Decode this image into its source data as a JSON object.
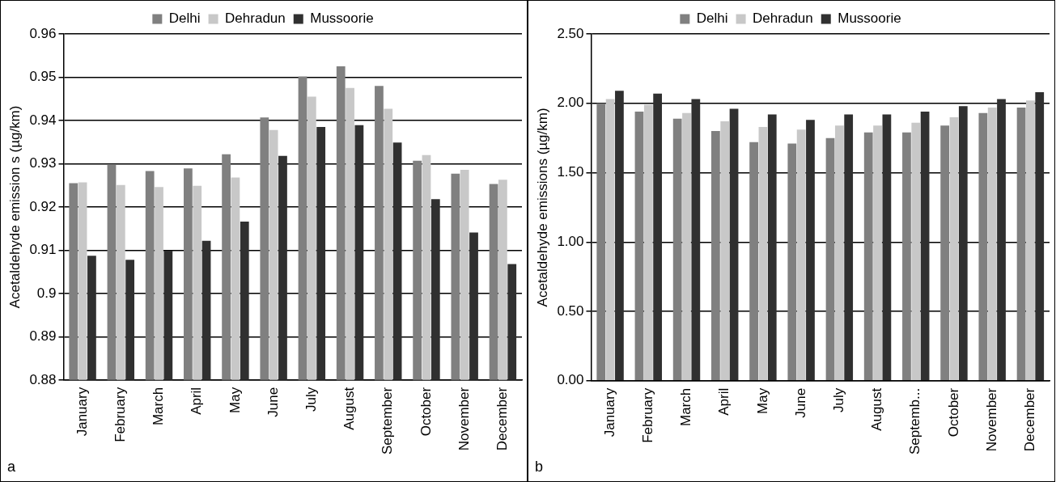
{
  "chart_data": [
    {
      "type": "bar",
      "categories": [
        "January",
        "February",
        "March",
        "April",
        "May",
        "June",
        "July",
        "August",
        "September",
        "October",
        "November",
        "December"
      ],
      "series": [
        {
          "name": "Delhi",
          "color": "#808080",
          "values": [
            0.9255,
            0.9297,
            0.9283,
            0.9289,
            0.9322,
            0.9407,
            0.9502,
            0.9525,
            0.948,
            0.9307,
            0.9277,
            0.9253
          ]
        },
        {
          "name": "Dehradun",
          "color": "#c8c8c8",
          "values": [
            0.9257,
            0.9251,
            0.9246,
            0.9249,
            0.9268,
            0.9378,
            0.9455,
            0.9475,
            0.9427,
            0.932,
            0.9286,
            0.9263
          ]
        },
        {
          "name": "Mussoorie",
          "color": "#303030",
          "values": [
            0.9087,
            0.9078,
            0.9099,
            0.9122,
            0.9166,
            0.9318,
            0.9385,
            0.9389,
            0.9349,
            0.9218,
            0.9141,
            0.9068
          ]
        }
      ],
      "ylabel": "Acetaldehyde emission s (µg/km)",
      "ylim": [
        0.88,
        0.96
      ],
      "yticks": [
        0.88,
        0.89,
        0.9,
        0.91,
        0.92,
        0.93,
        0.94,
        0.95,
        0.96
      ],
      "grid": "y",
      "legend": "top",
      "annotations": [
        "a"
      ]
    },
    {
      "type": "bar",
      "categories": [
        "January",
        "February",
        "March",
        "April",
        "May",
        "June",
        "July",
        "August",
        "Septemb...",
        "October",
        "November",
        "December"
      ],
      "series": [
        {
          "name": "Delhi",
          "color": "#808080",
          "values": [
            2.0,
            1.94,
            1.89,
            1.8,
            1.72,
            1.71,
            1.75,
            1.79,
            1.79,
            1.84,
            1.93,
            1.97
          ]
        },
        {
          "name": "Dehradun",
          "color": "#c8c8c8",
          "values": [
            2.03,
            1.99,
            1.93,
            1.87,
            1.83,
            1.81,
            1.84,
            1.84,
            1.86,
            1.9,
            1.97,
            2.02
          ]
        },
        {
          "name": "Mussoorie",
          "color": "#303030",
          "values": [
            2.09,
            2.07,
            2.03,
            1.96,
            1.92,
            1.88,
            1.92,
            1.92,
            1.94,
            1.98,
            2.03,
            2.08
          ]
        }
      ],
      "ylabel": "Acetaldehyde emissions (µg/km)",
      "ylim": [
        0,
        2.5
      ],
      "yticks": [
        {
          "value": 0,
          "label": "0.00"
        },
        {
          "value": 0.5,
          "label": "0.50"
        },
        {
          "value": 1,
          "label": "1.00"
        },
        {
          "value": 1.5,
          "label": "1.50"
        },
        {
          "value": 2,
          "label": "2.00"
        },
        {
          "value": 2.5,
          "label": "2.50"
        }
      ],
      "grid": "y",
      "legend": "top",
      "annotations": [
        "b"
      ]
    }
  ]
}
